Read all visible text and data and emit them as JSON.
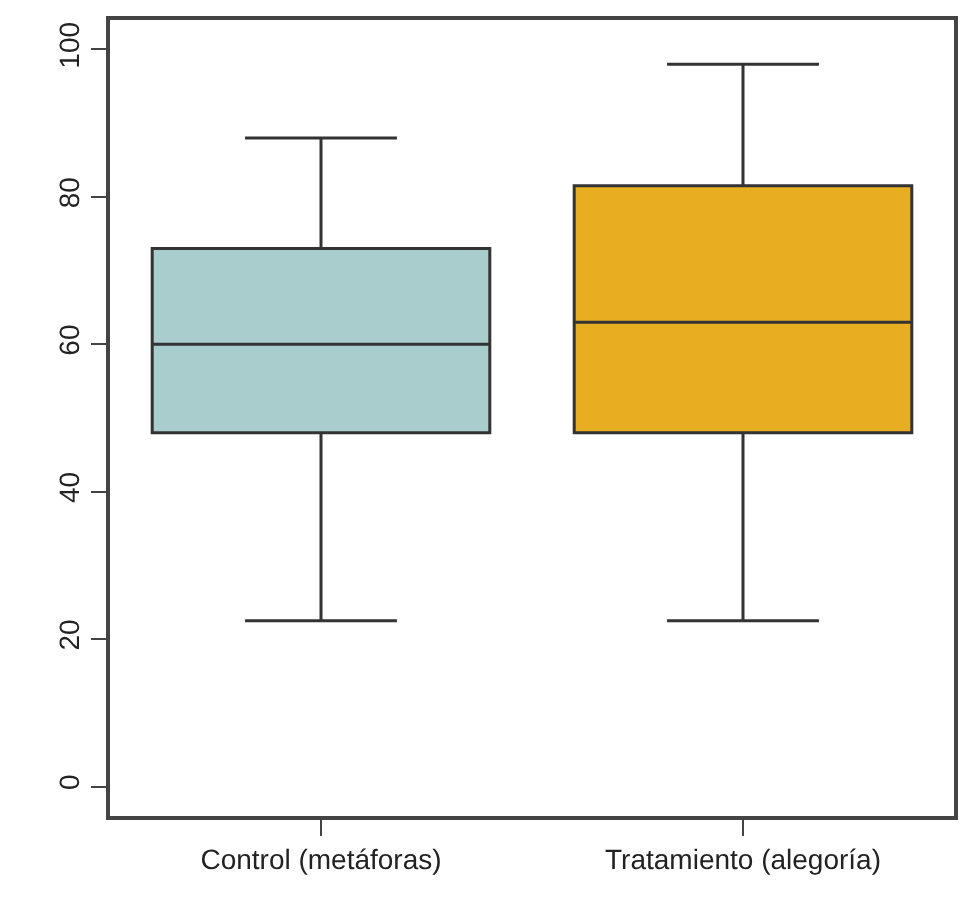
{
  "chart_data": {
    "type": "box",
    "categories": [
      "Control (metáforas)",
      "Tratamiento (alegoría)"
    ],
    "series": [
      {
        "colors": [
          "#a9cccc",
          "#e8ae22"
        ],
        "boxes": [
          {
            "low": 22.5,
            "q1": 48,
            "median": 60,
            "q3": 73,
            "high": 88
          },
          {
            "low": 22.5,
            "q1": 48,
            "median": 63,
            "q3": 81.5,
            "high": 98
          }
        ]
      }
    ],
    "ylim": [
      -4,
      104
    ],
    "yticks": [
      0,
      20,
      40,
      60,
      80,
      100
    ],
    "grid": false
  }
}
